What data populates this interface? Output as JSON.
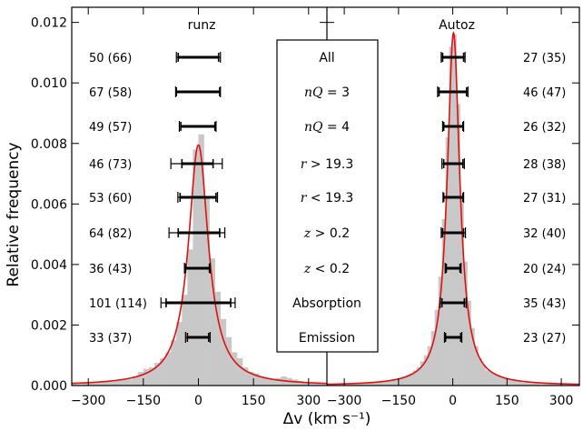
{
  "chart_data": {
    "type": "bar",
    "xlabel": "Δv (km s⁻¹)",
    "ylabel": "Relative frequency",
    "ylim": [
      0,
      0.0125
    ],
    "yticks": [
      "0.000",
      "0.002",
      "0.004",
      "0.006",
      "0.008",
      "0.010",
      "0.012"
    ],
    "ytick_values": [
      0,
      0.002,
      0.004,
      0.006,
      0.008,
      0.01,
      0.012
    ],
    "grid": false,
    "panels": [
      {
        "title": "runz",
        "xlim": [
          -345,
          350
        ],
        "xticks": [
          "−300",
          "−150",
          "0",
          "150",
          "300"
        ],
        "xtick_values": [
          -300,
          -150,
          0,
          150,
          300
        ],
        "hist_bin_width": 15,
        "hist_bin_centers": [
          -337.5,
          -322.5,
          -307.5,
          -292.5,
          -277.5,
          -262.5,
          -247.5,
          -232.5,
          -217.5,
          -202.5,
          -187.5,
          -172.5,
          -157.5,
          -142.5,
          -127.5,
          -112.5,
          -97.5,
          -82.5,
          -67.5,
          -52.5,
          -37.5,
          -22.5,
          -7.5,
          7.5,
          22.5,
          37.5,
          52.5,
          67.5,
          82.5,
          97.5,
          112.5,
          127.5,
          142.5,
          157.5,
          172.5,
          187.5,
          202.5,
          217.5,
          232.5,
          247.5,
          262.5,
          277.5,
          292.5,
          307.5,
          322.5,
          337.5
        ],
        "hist_values": [
          5e-05,
          5e-05,
          8e-05,
          8e-05,
          0.0001,
          0.0001,
          0.00012,
          0.00012,
          0.00015,
          0.00018,
          0.0002,
          0.0003,
          0.00045,
          0.00055,
          0.0006,
          0.00075,
          0.0009,
          0.0011,
          0.0015,
          0.0021,
          0.003,
          0.0045,
          0.0078,
          0.0083,
          0.0062,
          0.0042,
          0.0031,
          0.0022,
          0.0016,
          0.0011,
          0.0009,
          0.0006,
          0.00045,
          0.0004,
          0.0003,
          0.00025,
          0.0002,
          0.00025,
          0.0003,
          0.00025,
          0.0002,
          0.00015,
          0.0001,
          0.0001,
          8e-05,
          5e-05
        ],
        "fit_center": 0,
        "fit_peak": 0.00795,
        "fit_gamma": 33,
        "rows": [
          {
            "count_label": "50 (66)",
            "center": 0,
            "inner": [
              -55,
              55
            ],
            "outer": [
              -60,
              60
            ]
          },
          {
            "count_label": "67 (58)",
            "center": 0,
            "inner": [
              -60,
              58
            ],
            "outer": [
              -62,
              60
            ]
          },
          {
            "count_label": "49 (57)",
            "center": 0,
            "inner": [
              -48,
              45
            ],
            "outer": [
              -52,
              48
            ]
          },
          {
            "count_label": "46 (73)",
            "center": 0,
            "inner": [
              -45,
              40
            ],
            "outer": [
              -75,
              65
            ]
          },
          {
            "count_label": "53 (60)",
            "center": 0,
            "inner": [
              -50,
              48
            ],
            "outer": [
              -56,
              52
            ]
          },
          {
            "count_label": "64 (82)",
            "center": 0,
            "inner": [
              -55,
              58
            ],
            "outer": [
              -80,
              72
            ]
          },
          {
            "count_label": "36 (43)",
            "center": 0,
            "inner": [
              -35,
              30
            ],
            "outer": [
              -38,
              32
            ]
          },
          {
            "count_label": "101 (114)",
            "center": 0,
            "inner": [
              -88,
              88
            ],
            "outer": [
              -102,
              100
            ]
          },
          {
            "count_label": "33 (37)",
            "center": 0,
            "inner": [
              -30,
              28
            ],
            "outer": [
              -35,
              32
            ]
          }
        ]
      },
      {
        "title": "Autoz",
        "xlim": [
          -348,
          350
        ],
        "xticks": [
          "−300",
          "−150",
          "0",
          "150",
          "300"
        ],
        "xtick_values": [
          -300,
          -150,
          0,
          150,
          300
        ],
        "hist_bin_width": 10,
        "hist_bin_centers": [
          -345,
          -335,
          -325,
          -315,
          -305,
          -295,
          -285,
          -275,
          -265,
          -255,
          -245,
          -235,
          -225,
          -215,
          -205,
          -195,
          -185,
          -175,
          -165,
          -155,
          -145,
          -135,
          -125,
          -115,
          -105,
          -95,
          -85,
          -75,
          -65,
          -55,
          -45,
          -35,
          -25,
          -15,
          -5,
          5,
          15,
          25,
          35,
          45,
          55,
          65,
          75,
          85,
          95,
          105,
          115,
          125,
          135,
          145,
          155,
          165,
          175,
          185,
          195,
          205,
          215,
          225,
          235,
          245,
          255,
          265,
          275,
          285,
          295,
          305,
          315,
          325,
          335,
          345
        ],
        "hist_values": [
          5e-05,
          5e-05,
          5e-05,
          5e-05,
          5e-05,
          5e-05,
          8e-05,
          5e-05,
          8e-05,
          0.0001,
          0.0001,
          8e-05,
          0.0001,
          0.0001,
          0.00012,
          0.00012,
          0.00015,
          0.00015,
          0.0002,
          0.0002,
          0.00025,
          0.0003,
          0.00035,
          0.0004,
          0.0005,
          0.0006,
          0.0008,
          0.001,
          0.0013,
          0.0018,
          0.0025,
          0.0036,
          0.0055,
          0.0082,
          0.0112,
          0.0116,
          0.0093,
          0.0062,
          0.0041,
          0.0028,
          0.0019,
          0.0013,
          0.0009,
          0.0007,
          0.0005,
          0.00045,
          0.0004,
          0.00035,
          0.0003,
          0.00025,
          0.0002,
          0.00018,
          0.00015,
          0.00012,
          0.0001,
          0.0001,
          8e-05,
          0.0001,
          8e-05,
          5e-05,
          8e-05,
          5e-05,
          5e-05,
          5e-05,
          5e-05,
          5e-05,
          5e-05,
          5e-05,
          5e-05,
          5e-05
        ],
        "fit_center": 2,
        "fit_peak": 0.01165,
        "fit_gamma": 21,
        "rows": [
          {
            "count_label": "27 (35)",
            "center": 0,
            "inner": [
              -28,
              30
            ],
            "outer": [
              -32,
              34
            ]
          },
          {
            "count_label": "46 (47)",
            "center": 0,
            "inner": [
              -38,
              38
            ],
            "outer": [
              -42,
              42
            ]
          },
          {
            "count_label": "26 (32)",
            "center": 0,
            "inner": [
              -25,
              28
            ],
            "outer": [
              -28,
              30
            ]
          },
          {
            "count_label": "28 (38)",
            "center": 0,
            "inner": [
              -25,
              28
            ],
            "outer": [
              -30,
              32
            ]
          },
          {
            "count_label": "27 (31)",
            "center": 0,
            "inner": [
              -25,
              28
            ],
            "outer": [
              -27,
              30
            ]
          },
          {
            "count_label": "32 (40)",
            "center": 0,
            "inner": [
              -28,
              30
            ],
            "outer": [
              -32,
              35
            ]
          },
          {
            "count_label": "20 (24)",
            "center": 0,
            "inner": [
              -18,
              20
            ],
            "outer": [
              -21,
              23
            ]
          },
          {
            "count_label": "35 (43)",
            "center": 0,
            "inner": [
              -30,
              32
            ],
            "outer": [
              -35,
              37
            ]
          },
          {
            "count_label": "23 (27)",
            "center": 0,
            "inner": [
              -20,
              22
            ],
            "outer": [
              -23,
              25
            ]
          }
        ]
      }
    ],
    "legend": {
      "placement": "center",
      "rows": [
        {
          "parts": [
            {
              "t": "All",
              "it": false
            }
          ]
        },
        {
          "parts": [
            {
              "t": "nQ",
              "it": true
            },
            {
              "t": " = 3",
              "it": false
            }
          ]
        },
        {
          "parts": [
            {
              "t": "nQ",
              "it": true
            },
            {
              "t": " = 4",
              "it": false
            }
          ]
        },
        {
          "parts": [
            {
              "t": "r",
              "it": true
            },
            {
              "t": " > 19.3",
              "it": false
            }
          ]
        },
        {
          "parts": [
            {
              "t": "r",
              "it": true
            },
            {
              "t": " < 19.3",
              "it": false
            }
          ]
        },
        {
          "parts": [
            {
              "t": "z",
              "it": true
            },
            {
              "t": " > 0.2",
              "it": false
            }
          ]
        },
        {
          "parts": [
            {
              "t": "z",
              "it": true
            },
            {
              "t": " < 0.2",
              "it": false
            }
          ]
        },
        {
          "parts": [
            {
              "t": "Absorption",
              "it": false
            }
          ]
        },
        {
          "parts": [
            {
              "t": "Emission",
              "it": false
            }
          ]
        }
      ]
    },
    "colors": {
      "hist": "#c8c8c8",
      "fit": "#e01010",
      "axis": "#000000"
    }
  }
}
